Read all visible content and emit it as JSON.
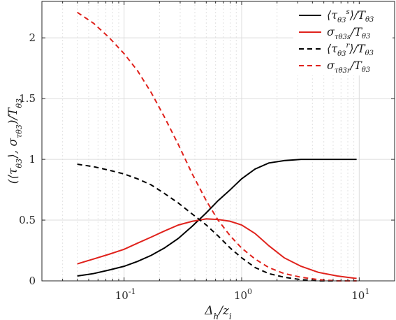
{
  "chart_data": {
    "type": "line",
    "xscale": "log",
    "xlim": [
      0.02,
      20
    ],
    "ylim": [
      0,
      2.3
    ],
    "xlabel": "Δh/zi",
    "ylabel": "(⟨τθ3⟩, στθ3)/Tθ3",
    "xticks": [
      {
        "value": 0.1,
        "label": "10-1"
      },
      {
        "value": 1,
        "label": "100"
      },
      {
        "value": 10,
        "label": "101"
      }
    ],
    "yticks": [
      {
        "value": 0,
        "label": "0"
      },
      {
        "value": 0.5,
        "label": "0.5"
      },
      {
        "value": 1,
        "label": "1"
      },
      {
        "value": 1.5,
        "label": "1.5"
      },
      {
        "value": 2,
        "label": "2"
      }
    ],
    "grid": true,
    "legend_position": "top-right",
    "x": [
      0.04,
      0.055,
      0.075,
      0.1,
      0.13,
      0.17,
      0.22,
      0.29,
      0.38,
      0.5,
      0.63,
      0.8,
      1.0,
      1.3,
      1.7,
      2.3,
      3.2,
      4.5,
      6.5,
      9.5
    ],
    "series": [
      {
        "name": "⟨τθ3s⟩/Tθ3",
        "color": "#000000",
        "dash": "solid",
        "values": [
          0.04,
          0.06,
          0.09,
          0.12,
          0.16,
          0.21,
          0.27,
          0.35,
          0.45,
          0.56,
          0.66,
          0.75,
          0.84,
          0.92,
          0.97,
          0.99,
          1.0,
          1.0,
          1.0,
          1.0
        ]
      },
      {
        "name": "στθ3s/Tθ3",
        "color": "#e0221c",
        "dash": "solid",
        "values": [
          0.14,
          0.18,
          0.22,
          0.26,
          0.31,
          0.36,
          0.41,
          0.46,
          0.49,
          0.51,
          0.505,
          0.49,
          0.46,
          0.39,
          0.29,
          0.19,
          0.12,
          0.07,
          0.04,
          0.02
        ]
      },
      {
        "name": "⟨τθ3r⟩/Tθ3",
        "color": "#000000",
        "dash": "dashed",
        "values": [
          0.96,
          0.94,
          0.91,
          0.88,
          0.84,
          0.79,
          0.72,
          0.64,
          0.55,
          0.46,
          0.37,
          0.27,
          0.19,
          0.11,
          0.06,
          0.03,
          0.01,
          0.0,
          0.0,
          0.0
        ]
      },
      {
        "name": "στθ3r/Tθ3",
        "color": "#e0221c",
        "dash": "dashed",
        "values": [
          2.21,
          2.12,
          2.0,
          1.87,
          1.73,
          1.55,
          1.35,
          1.12,
          0.88,
          0.66,
          0.5,
          0.37,
          0.27,
          0.18,
          0.11,
          0.06,
          0.03,
          0.01,
          0.0,
          0.0
        ]
      }
    ]
  }
}
